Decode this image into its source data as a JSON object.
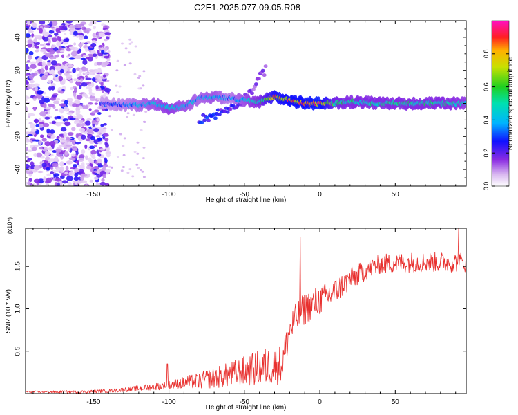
{
  "title": "C2E1.2025.077.09.05.R08",
  "chart_data": [
    {
      "type": "heatmap",
      "name": "spectrogram",
      "xlabel": "Height of straight line (km)",
      "ylabel": "Frequency (Hz)",
      "xlim": [
        -195,
        97
      ],
      "ylim": [
        -50,
        50
      ],
      "xticks": [
        -150,
        -100,
        -50,
        0,
        50
      ],
      "yticks": [
        -40,
        -20,
        0,
        20,
        40
      ],
      "colorbar": {
        "label": "Normalized spectral amplitude",
        "range": [
          0,
          1
        ],
        "ticks": [
          0.0,
          0.2,
          0.4,
          0.6,
          0.8
        ],
        "tick_labels": [
          "0.0",
          "0.2",
          "0.4",
          "0.6",
          "0.8"
        ]
      },
      "ridge": {
        "x": [
          -145,
          -130,
          -120,
          -110,
          -100,
          -90,
          -80,
          -70,
          -60,
          -50,
          -40,
          -30,
          -20,
          -10,
          0,
          10,
          20,
          40,
          60,
          80,
          97
        ],
        "freq": [
          0,
          -1,
          -1,
          0,
          -3,
          -2,
          3,
          4,
          3,
          2,
          1,
          4,
          2,
          0,
          0,
          0,
          1,
          0,
          0,
          0,
          0
        ],
        "amplitude": [
          0.3,
          0.35,
          0.4,
          0.45,
          0.5,
          0.45,
          0.4,
          0.45,
          0.35,
          0.45,
          0.55,
          0.85,
          0.9,
          0.9,
          0.95,
          0.6,
          0.55,
          0.55,
          0.55,
          0.55,
          0.5
        ]
      },
      "branch": {
        "x": [
          -80,
          -70,
          -60,
          -50,
          -45,
          -40,
          -35
        ],
        "freq": [
          -10,
          -7,
          -3,
          3,
          8,
          15,
          22
        ],
        "amplitude": [
          0.25,
          0.25,
          0.2,
          0.2,
          0.15,
          0.15,
          0.15
        ]
      },
      "noise_region": {
        "x_from": -195,
        "x_to": -140,
        "amplitude": 0.15
      }
    },
    {
      "type": "line",
      "name": "snr",
      "xlabel": "Height of straight line (km)",
      "ylabel": "SNR (10 * v/v)",
      "y_multiplier_label": "(x10⁴)",
      "xlim": [
        -195,
        97
      ],
      "ylim": [
        0,
        1.95
      ],
      "xticks": [
        -150,
        -100,
        -50,
        0,
        50
      ],
      "yticks": [
        0.5,
        1.0,
        1.5
      ],
      "ytick_labels": [
        "0.5",
        "1.0",
        "1.5"
      ],
      "color": "#e8312f",
      "trend": {
        "x": [
          -195,
          -160,
          -140,
          -120,
          -100,
          -80,
          -60,
          -40,
          -30,
          -25,
          -20,
          -15,
          -10,
          0,
          10,
          20,
          30,
          40,
          60,
          80,
          97
        ],
        "y": [
          0.02,
          0.02,
          0.03,
          0.06,
          0.1,
          0.15,
          0.22,
          0.3,
          0.33,
          0.35,
          0.75,
          0.9,
          1.0,
          1.1,
          1.2,
          1.35,
          1.45,
          1.53,
          1.55,
          1.55,
          1.55
        ]
      },
      "noise_amplitude": {
        "x": [
          -195,
          -140,
          -100,
          -60,
          -30,
          -20,
          0,
          30,
          97
        ],
        "y": [
          0.01,
          0.02,
          0.05,
          0.15,
          0.25,
          0.2,
          0.18,
          0.12,
          0.12
        ]
      },
      "spikes": [
        {
          "x": -101,
          "y": 0.35
        },
        {
          "x": -13,
          "y": 1.85
        },
        {
          "x": 92,
          "y": 1.95
        }
      ]
    }
  ]
}
